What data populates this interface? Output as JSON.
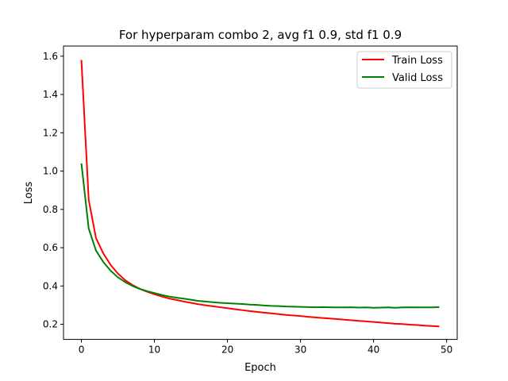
{
  "chart_data": {
    "type": "line",
    "title": "For hyperparam combo 2, avg f1 0.9, std f1 0.9",
    "xlabel": "Epoch",
    "ylabel": "Loss",
    "xlim": [
      -2.45,
      51.45
    ],
    "ylim": [
      0.121,
      1.653
    ],
    "xticks": [
      0,
      10,
      20,
      30,
      40,
      50
    ],
    "yticks": [
      0.2,
      0.4,
      0.6,
      0.8,
      1.0,
      1.2,
      1.4,
      1.6
    ],
    "xtick_labels": [
      "0",
      "10",
      "20",
      "30",
      "40",
      "50"
    ],
    "ytick_labels": [
      "0.2",
      "0.4",
      "0.6",
      "0.8",
      "1.0",
      "1.2",
      "1.4",
      "1.6"
    ],
    "grid": false,
    "legend_position": "top-right",
    "x": [
      0,
      1,
      2,
      3,
      4,
      5,
      6,
      7,
      8,
      9,
      10,
      11,
      12,
      13,
      14,
      15,
      16,
      17,
      18,
      19,
      20,
      21,
      22,
      23,
      24,
      25,
      26,
      27,
      28,
      29,
      30,
      31,
      32,
      33,
      34,
      35,
      36,
      37,
      38,
      39,
      40,
      41,
      42,
      43,
      44,
      45,
      46,
      47,
      48,
      49
    ],
    "series": [
      {
        "name": "Train Loss",
        "color": "#ff0000",
        "values": [
          1.58,
          0.85,
          0.65,
          0.57,
          0.51,
          0.465,
          0.43,
          0.405,
          0.385,
          0.37,
          0.357,
          0.345,
          0.335,
          0.327,
          0.319,
          0.312,
          0.305,
          0.299,
          0.294,
          0.289,
          0.284,
          0.279,
          0.274,
          0.269,
          0.265,
          0.261,
          0.257,
          0.253,
          0.249,
          0.246,
          0.243,
          0.239,
          0.236,
          0.233,
          0.23,
          0.227,
          0.224,
          0.221,
          0.218,
          0.215,
          0.212,
          0.209,
          0.206,
          0.203,
          0.201,
          0.198,
          0.196,
          0.193,
          0.191,
          0.189
        ]
      },
      {
        "name": "Valid Loss",
        "color": "#008000",
        "values": [
          1.04,
          0.7,
          0.585,
          0.525,
          0.48,
          0.445,
          0.42,
          0.4,
          0.385,
          0.373,
          0.363,
          0.353,
          0.345,
          0.339,
          0.334,
          0.328,
          0.322,
          0.319,
          0.315,
          0.312,
          0.31,
          0.308,
          0.306,
          0.303,
          0.301,
          0.298,
          0.296,
          0.295,
          0.293,
          0.292,
          0.291,
          0.29,
          0.289,
          0.29,
          0.289,
          0.288,
          0.288,
          0.289,
          0.287,
          0.288,
          0.286,
          0.287,
          0.288,
          0.286,
          0.288,
          0.289,
          0.288,
          0.288,
          0.288,
          0.29
        ]
      }
    ]
  }
}
